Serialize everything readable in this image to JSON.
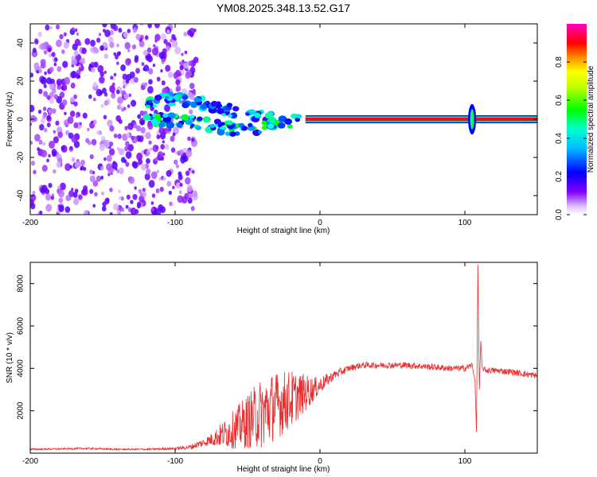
{
  "title": "YM08.2025.348.13.52.G17",
  "chart_data": [
    {
      "type": "heatmap",
      "panel": "top",
      "xlabel": "Height of straight line (km)",
      "ylabel": "Frequency (Hz)",
      "xlim": [
        -200,
        150
      ],
      "ylim": [
        -50,
        50
      ],
      "x_ticks": [
        -200,
        -100,
        0,
        100
      ],
      "x_tick_labels": [
        "-200",
        "-100",
        "0",
        "100"
      ],
      "y_ticks": [
        -40,
        -20,
        0,
        20,
        40
      ],
      "y_tick_labels": [
        "-40",
        "-20",
        "0",
        "20",
        "40"
      ],
      "features": [
        {
          "name": "scatter-noise",
          "x_range": [
            -200,
            -85
          ],
          "y_range": [
            -50,
            50
          ],
          "amplitude": 0.15
        },
        {
          "name": "upper-branch",
          "points": [
            [
              -120,
              9
            ],
            [
              -110,
              10
            ],
            [
              -100,
              10
            ],
            [
              -90,
              9
            ],
            [
              -80,
              8
            ],
            [
              -70,
              6
            ],
            [
              -60,
              4
            ],
            [
              -50,
              2
            ],
            [
              -40,
              1
            ],
            [
              -30,
              0
            ]
          ],
          "amplitude": 0.35
        },
        {
          "name": "lower-branch",
          "points": [
            [
              -120,
              0
            ],
            [
              -100,
              -1
            ],
            [
              -80,
              -2
            ],
            [
              -70,
              -4
            ],
            [
              -60,
              -5
            ],
            [
              -50,
              -6
            ],
            [
              -40,
              -4
            ],
            [
              -30,
              -3
            ],
            [
              -20,
              -1
            ],
            [
              -10,
              0
            ]
          ],
          "amplitude": 0.4
        },
        {
          "name": "main-line",
          "points": [
            [
              -10,
              0
            ],
            [
              150,
              0
            ]
          ],
          "amplitude": 1.0
        },
        {
          "name": "spike",
          "x": 105,
          "y_range": [
            -8,
            8
          ],
          "amplitude": 0.5
        }
      ],
      "colorbar": {
        "label": "Normalized spectral amplitude",
        "range": [
          0.0,
          1.0
        ],
        "ticks": [
          0.0,
          0.2,
          0.4,
          0.6,
          0.8
        ],
        "tick_labels": [
          "0.0",
          "0.2",
          "0.4",
          "0.6",
          "0.8"
        ],
        "colors": [
          "#ffffff",
          "#8000ff",
          "#0000ff",
          "#00ffff",
          "#00ff00",
          "#ffff00",
          "#ff8000",
          "#ff0000",
          "#ff00c0"
        ]
      }
    },
    {
      "type": "line",
      "panel": "bottom",
      "xlabel": "Height of straight line (km)",
      "ylabel": "SNR (10 * v/v)",
      "xlim": [
        -200,
        150
      ],
      "ylim": [
        0,
        9000
      ],
      "x_ticks": [
        -200,
        -100,
        0,
        100
      ],
      "x_tick_labels": [
        "-200",
        "-100",
        "0",
        "100"
      ],
      "y_ticks": [
        2000,
        4000,
        6000,
        8000
      ],
      "y_tick_labels": [
        "2000",
        "4000",
        "6000",
        "8000"
      ],
      "color": "#e83030",
      "series": [
        {
          "name": "SNR",
          "x": [
            -200,
            -180,
            -160,
            -140,
            -120,
            -100,
            -90,
            -80,
            -75,
            -70,
            -65,
            -60,
            -55,
            -50,
            -45,
            -40,
            -35,
            -30,
            -25,
            -20,
            -15,
            -10,
            -5,
            0,
            5,
            10,
            15,
            20,
            25,
            30,
            40,
            50,
            60,
            70,
            80,
            90,
            100,
            105,
            107,
            108,
            109,
            110,
            111,
            112,
            115,
            120,
            130,
            140,
            150
          ],
          "y": [
            180,
            200,
            220,
            180,
            180,
            220,
            280,
            500,
            650,
            800,
            950,
            1100,
            1300,
            1500,
            1700,
            1900,
            2100,
            2250,
            2400,
            2550,
            2700,
            2850,
            3000,
            3200,
            3450,
            3700,
            3850,
            4000,
            4100,
            4150,
            4150,
            4150,
            4150,
            4100,
            4050,
            4000,
            4000,
            4150,
            3400,
            1000,
            8900,
            3000,
            5300,
            4000,
            3900,
            3900,
            3850,
            3750,
            3650
          ],
          "noise_amplitude": [
            40,
            40,
            40,
            40,
            40,
            60,
            120,
            200,
            300,
            500,
            700,
            900,
            1100,
            1300,
            1500,
            1700,
            1700,
            1600,
            1500,
            1400,
            1100,
            900,
            600,
            400,
            300,
            200,
            200,
            150,
            150,
            150,
            150,
            150,
            150,
            150,
            150,
            150,
            150,
            150,
            0,
            0,
            0,
            0,
            0,
            100,
            150,
            150,
            150,
            150,
            150
          ]
        }
      ]
    }
  ]
}
